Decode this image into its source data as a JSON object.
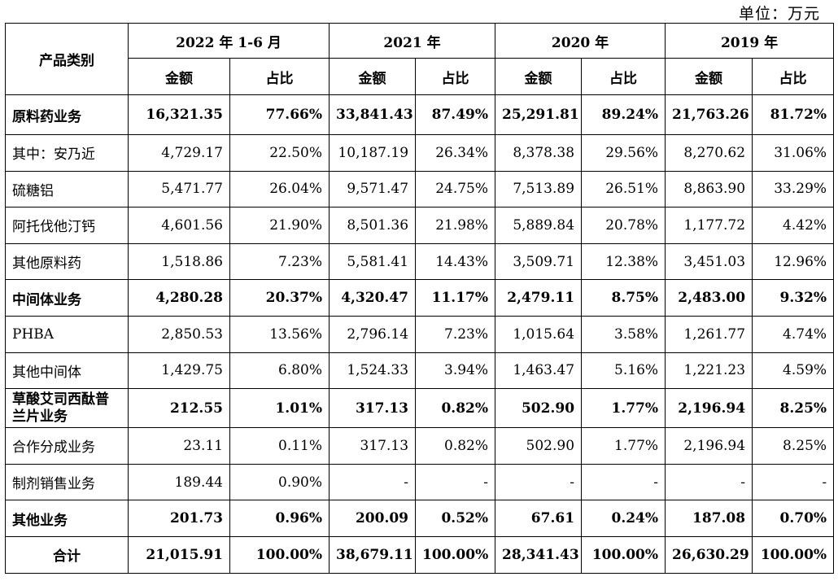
{
  "unit_label": "单位：万元",
  "header": {
    "category": "产品类别",
    "periods": [
      "2022 年 1-6 月",
      "2021 年",
      "2020 年",
      "2019 年"
    ],
    "amount": "金额",
    "ratio": "占比"
  },
  "rows": [
    {
      "label": "原料药业务",
      "bold": true,
      "cells": [
        "16,321.35",
        "77.66%",
        "33,841.43",
        "87.49%",
        "25,291.81",
        "89.24%",
        "21,763.26",
        "81.72%"
      ]
    },
    {
      "label": "其中：安乃近",
      "bold": false,
      "cells": [
        "4,729.17",
        "22.50%",
        "10,187.19",
        "26.34%",
        "8,378.38",
        "29.56%",
        "8,270.62",
        "31.06%"
      ]
    },
    {
      "label": "硫糖铝",
      "bold": false,
      "cells": [
        "5,471.77",
        "26.04%",
        "9,571.47",
        "24.75%",
        "7,513.89",
        "26.51%",
        "8,863.90",
        "33.29%"
      ]
    },
    {
      "label": "阿托伐他汀钙",
      "bold": false,
      "cells": [
        "4,601.56",
        "21.90%",
        "8,501.36",
        "21.98%",
        "5,889.84",
        "20.78%",
        "1,177.72",
        "4.42%"
      ]
    },
    {
      "label": "其他原料药",
      "bold": false,
      "cells": [
        "1,518.86",
        "7.23%",
        "5,581.41",
        "14.43%",
        "3,509.71",
        "12.38%",
        "3,451.03",
        "12.96%"
      ]
    },
    {
      "label": "中间体业务",
      "bold": true,
      "cells": [
        "4,280.28",
        "20.37%",
        "4,320.47",
        "11.17%",
        "2,479.11",
        "8.75%",
        "2,483.00",
        "9.32%"
      ]
    },
    {
      "label": "PHBA",
      "bold": false,
      "cells": [
        "2,850.53",
        "13.56%",
        "2,796.14",
        "7.23%",
        "1,015.64",
        "3.58%",
        "1,261.77",
        "4.74%"
      ]
    },
    {
      "label": "其他中间体",
      "bold": false,
      "cells": [
        "1,429.75",
        "6.80%",
        "1,524.33",
        "3.94%",
        "1,463.47",
        "5.16%",
        "1,221.23",
        "4.59%"
      ]
    },
    {
      "label": "草酸艾司西酞普兰片业务",
      "bold": true,
      "cells": [
        "212.55",
        "1.01%",
        "317.13",
        "0.82%",
        "502.90",
        "1.77%",
        "2,196.94",
        "8.25%"
      ]
    },
    {
      "label": "合作分成业务",
      "bold": false,
      "cells": [
        "23.11",
        "0.11%",
        "317.13",
        "0.82%",
        "502.90",
        "1.77%",
        "2,196.94",
        "8.25%"
      ]
    },
    {
      "label": "制剂销售业务",
      "bold": false,
      "cells": [
        "189.44",
        "0.90%",
        "-",
        "-",
        "-",
        "-",
        "-",
        "-"
      ]
    },
    {
      "label": "其他业务",
      "bold": true,
      "cells": [
        "201.73",
        "0.96%",
        "200.09",
        "0.52%",
        "67.61",
        "0.24%",
        "187.08",
        "0.70%"
      ]
    },
    {
      "label": "合计",
      "bold": true,
      "cells": [
        "21,015.91",
        "100.00%",
        "38,679.11",
        "100.00%",
        "28,341.43",
        "100.00%",
        "26,630.29",
        "100.00%"
      ]
    }
  ]
}
